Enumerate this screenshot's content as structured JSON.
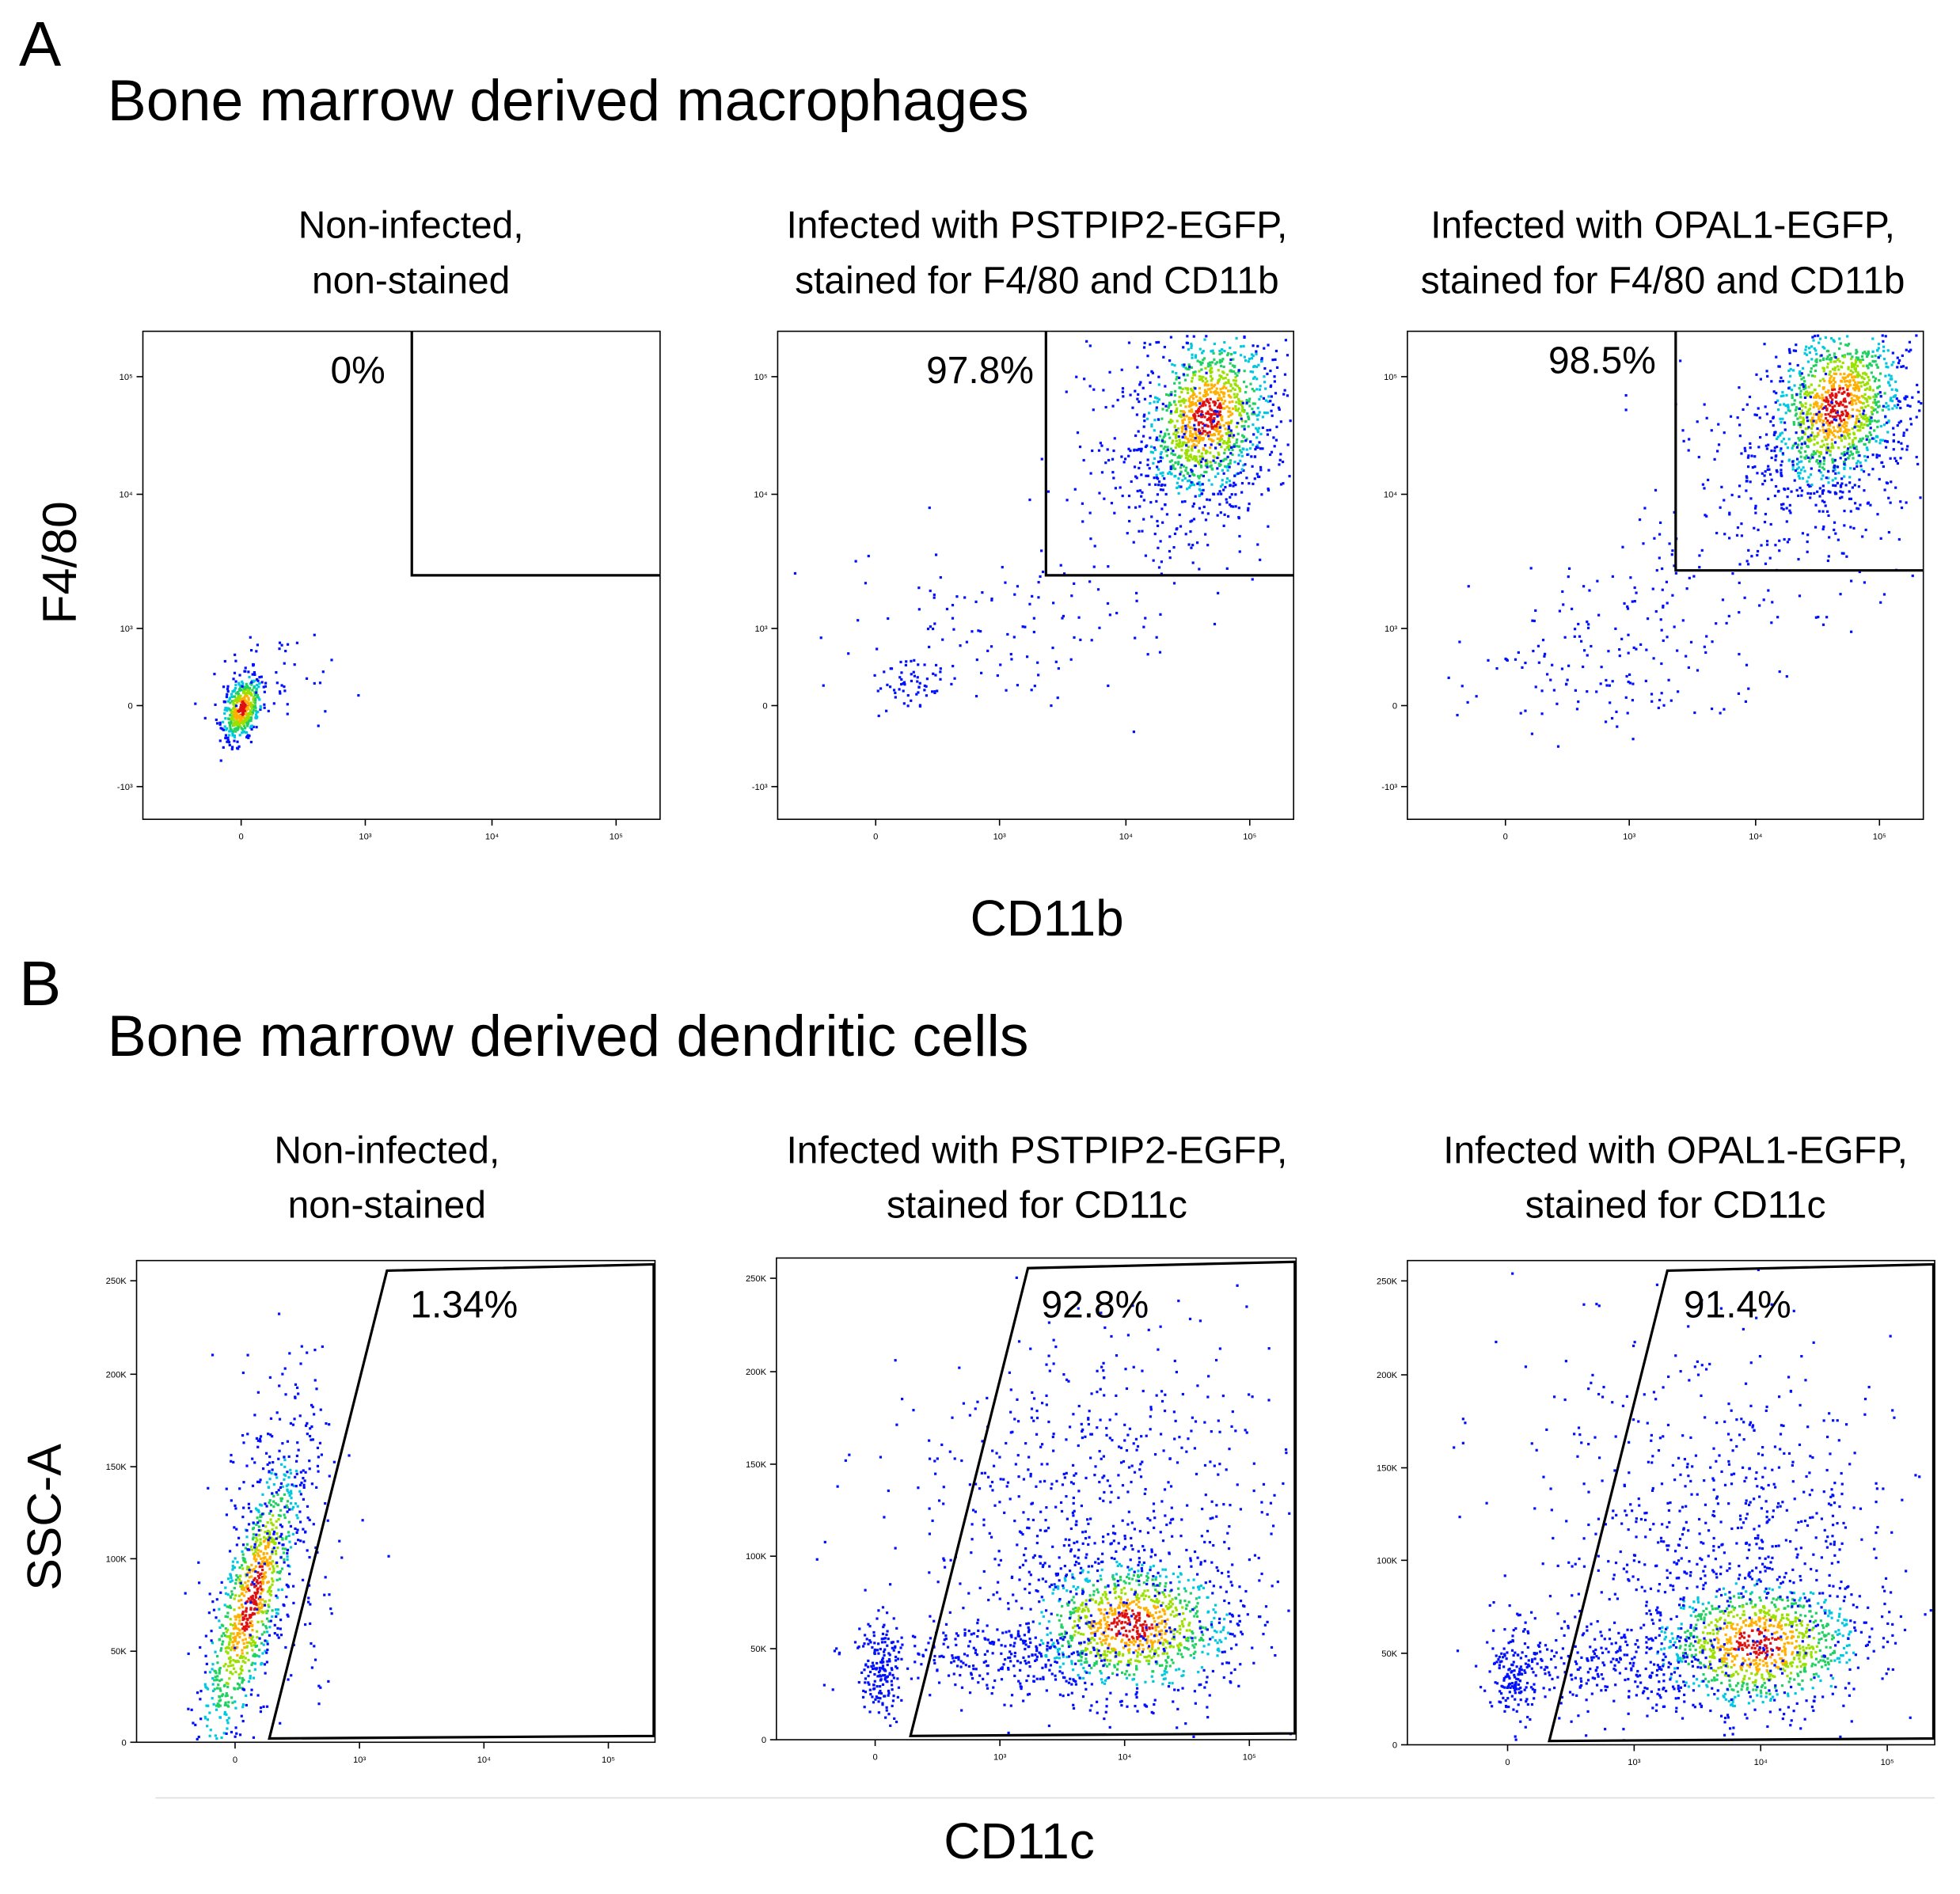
{
  "panels": [
    {
      "letter": "A",
      "title": "Bone marrow derived macrophages",
      "y_axis_label": "F4/80",
      "x_axis_label": "CD11b",
      "x_ticks": [
        "0",
        "10³",
        "10⁴",
        "10⁵"
      ],
      "y_ticks": [
        "10⁵",
        "10⁴",
        "10³",
        "0",
        "-10³"
      ],
      "plots": [
        {
          "title": [
            "Non-infected,",
            "non-stained"
          ],
          "gate_label": "0%"
        },
        {
          "title": [
            "Infected with PSTPIP2-EGFP,",
            "stained for F4/80 and CD11b"
          ],
          "gate_label": "97.8%"
        },
        {
          "title": [
            "Infected with OPAL1-EGFP,",
            "stained for F4/80 and CD11b"
          ],
          "gate_label": "98.5%"
        }
      ]
    },
    {
      "letter": "B",
      "title": "Bone marrow derived dendritic cells",
      "y_axis_label": "SSC-A",
      "x_axis_label": "CD11c",
      "x_ticks": [
        "0",
        "10³",
        "10⁴",
        "10⁵"
      ],
      "y_ticks": [
        "250K",
        "200K",
        "150K",
        "100K",
        "50K",
        "0"
      ],
      "plots": [
        {
          "title": [
            "Non-infected,",
            "non-stained"
          ],
          "gate_label": "1.34%"
        },
        {
          "title": [
            "Infected with PSTPIP2-EGFP,",
            "stained for CD11c"
          ],
          "gate_label": "92.8%"
        },
        {
          "title": [
            "Infected with OPAL1-EGFP,",
            "stained for CD11c"
          ],
          "gate_label": "91.4%"
        }
      ]
    }
  ]
}
